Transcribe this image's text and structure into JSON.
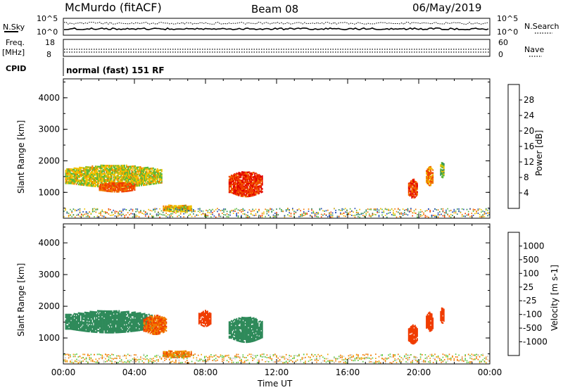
{
  "header": {
    "station": "McMurdo (fitACF)",
    "beam": "Beam 08",
    "date": "06/May/2019"
  },
  "meta_panel": {
    "nsky_label": "N.Sky",
    "nsearch_label": "N.Search",
    "freq_label_1": "Freq.",
    "freq_label_2": "[MHz]",
    "nave_label": "Nave",
    "cpid_label": "CPID",
    "cpid_text": "normal (fast) 151 RF",
    "noise_ticks_left": [
      "10^5",
      "10^0"
    ],
    "noise_ticks_right": [
      "10^5",
      "10^0"
    ],
    "freq_ticks": [
      "18",
      "8"
    ],
    "nave_ticks": [
      "60",
      "0"
    ]
  },
  "colors": {
    "power_scale": [
      "#0000f0",
      "#1e46b4",
      "#2f8a5a",
      "#5cb83a",
      "#f0c000",
      "#f07800",
      "#f03c00",
      "#e00000"
    ],
    "velocity_scale": [
      "#f00000",
      "#f03c00",
      "#f07800",
      "#f0a000",
      "#c8c8c8",
      "#5cc840",
      "#2f8a5a",
      "#2a64b4",
      "#1e3cc8"
    ]
  },
  "chart_data": [
    {
      "type": "heatmap",
      "panel": "power",
      "xlabel": "Time UT",
      "ylabel": "Slant Range [km]",
      "x_ticks": [
        "00:00",
        "04:00",
        "08:00",
        "12:00",
        "16:00",
        "20:00",
        "00:00"
      ],
      "y_ticks": [
        "1000",
        "2000",
        "3000",
        "4000"
      ],
      "xlim": [
        0,
        24
      ],
      "ylim": [
        180,
        4600
      ],
      "colorbar": {
        "label": "Power [dB]",
        "ticks": [
          "4",
          "8",
          "12",
          "16",
          "20",
          "24",
          "28"
        ],
        "range": [
          0,
          32
        ]
      },
      "echo_regions": [
        {
          "t_start": 0.1,
          "t_end": 5.5,
          "r_center": 1500,
          "r_width": 700,
          "value": 17
        },
        {
          "t_start": 2.0,
          "t_end": 4.0,
          "r_center": 1150,
          "r_width": 300,
          "value": 24
        },
        {
          "t_start": 5.6,
          "t_end": 7.2,
          "r_center": 480,
          "r_width": 220,
          "value": 18
        },
        {
          "t_start": 9.3,
          "t_end": 11.2,
          "r_center": 1250,
          "r_width": 800,
          "value": 27
        },
        {
          "t_start": 19.4,
          "t_end": 19.9,
          "r_center": 1100,
          "r_width": 600,
          "value": 26
        },
        {
          "t_start": 20.4,
          "t_end": 20.8,
          "r_center": 1500,
          "r_width": 600,
          "value": 22
        },
        {
          "t_start": 21.2,
          "t_end": 21.4,
          "r_center": 1700,
          "r_width": 500,
          "value": 14
        }
      ]
    },
    {
      "type": "heatmap",
      "panel": "velocity",
      "xlabel": "Time UT",
      "ylabel": "Slant Range [km]",
      "x_ticks": [
        "00:00",
        "04:00",
        "08:00",
        "12:00",
        "16:00",
        "20:00",
        "00:00"
      ],
      "y_ticks": [
        "1000",
        "2000",
        "3000",
        "4000"
      ],
      "xlim": [
        0,
        24
      ],
      "ylim": [
        180,
        4600
      ],
      "colorbar": {
        "label": "Velocity [m s-1]",
        "ticks": [
          "1000",
          "500",
          "100",
          "25",
          "-25",
          "-100",
          "-500",
          "-1000"
        ],
        "range": [
          -1000,
          1000
        ]
      },
      "echo_regions": [
        {
          "t_start": 0.1,
          "t_end": 5.0,
          "r_center": 1500,
          "r_width": 700,
          "value": 200
        },
        {
          "t_start": 4.5,
          "t_end": 5.8,
          "r_center": 1400,
          "r_width": 600,
          "value": -80
        },
        {
          "t_start": 5.6,
          "t_end": 7.2,
          "r_center": 480,
          "r_width": 220,
          "value": -60
        },
        {
          "t_start": 7.6,
          "t_end": 8.3,
          "r_center": 1600,
          "r_width": 500,
          "value": -300
        },
        {
          "t_start": 9.3,
          "t_end": 11.2,
          "r_center": 1250,
          "r_width": 800,
          "value": 300
        },
        {
          "t_start": 19.4,
          "t_end": 19.9,
          "r_center": 1100,
          "r_width": 600,
          "value": -400
        },
        {
          "t_start": 20.4,
          "t_end": 20.8,
          "r_center": 1500,
          "r_width": 600,
          "value": -400
        },
        {
          "t_start": 21.2,
          "t_end": 21.4,
          "r_center": 1700,
          "r_width": 500,
          "value": -400
        }
      ]
    }
  ]
}
